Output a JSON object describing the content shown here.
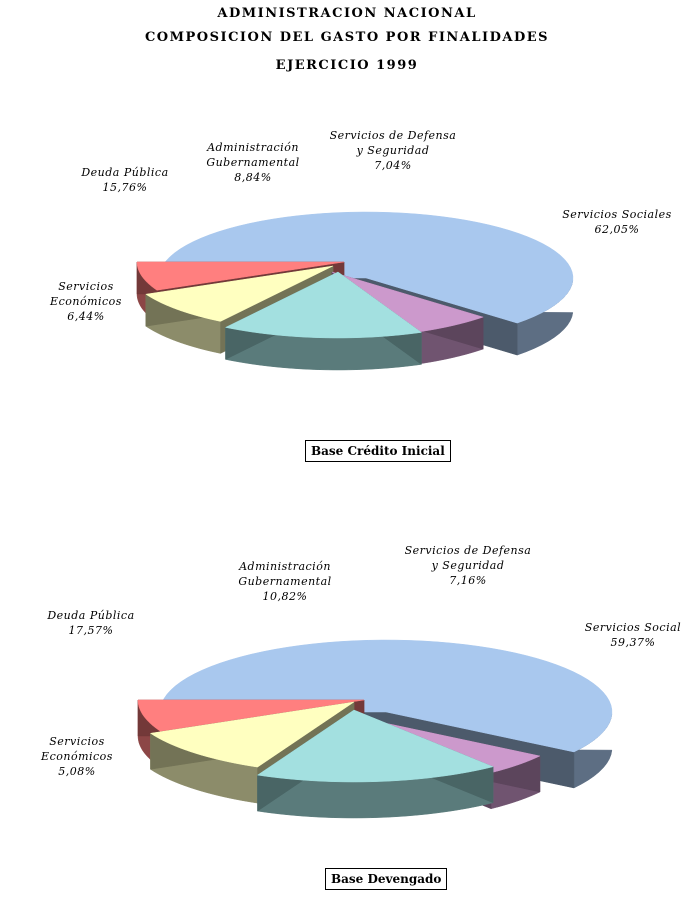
{
  "header": {
    "line1": "ADMINISTRACION NACIONAL",
    "line2": "COMPOSICION DEL GASTO POR FINALIDADES",
    "line3": "EJERCICIO 1999"
  },
  "colors": {
    "sociales": "#a9c8ee",
    "defensa": "#ff7f7f",
    "administracion": "#ffffc0",
    "deuda": "#a3e0e0",
    "economicos": "#cc99cc"
  },
  "chart_data": [
    {
      "type": "pie",
      "title": "Base Crédito Inicial",
      "slices": [
        {
          "key": "sociales",
          "label_lines": [
            "Servicios Sociales"
          ],
          "value_label": "62,05%",
          "value": 62.05
        },
        {
          "key": "economicos",
          "label_lines": [
            "Servicios",
            "Económicos"
          ],
          "value_label": "6,44%",
          "value": 6.44
        },
        {
          "key": "deuda",
          "label_lines": [
            "Deuda Pública"
          ],
          "value_label": "15,76%",
          "value": 15.76
        },
        {
          "key": "administracion",
          "label_lines": [
            "Administración",
            "Gubernamental"
          ],
          "value_label": "8,84%",
          "value": 8.84
        },
        {
          "key": "defensa",
          "label_lines": [
            "Servicios de Defensa",
            "y Seguridad"
          ],
          "value_label": "7,04%",
          "value": 7.04
        }
      ]
    },
    {
      "type": "pie",
      "title": "Base Devengado",
      "slices": [
        {
          "key": "sociales",
          "label_lines": [
            "Servicios Social"
          ],
          "value_label": "59,37%",
          "value": 59.37
        },
        {
          "key": "economicos",
          "label_lines": [
            "Servicios",
            "Económicos"
          ],
          "value_label": "5,08%",
          "value": 5.08
        },
        {
          "key": "deuda",
          "label_lines": [
            "Deuda Pública"
          ],
          "value_label": "17,57%",
          "value": 17.57
        },
        {
          "key": "administracion",
          "label_lines": [
            "Administración",
            "Gubernamental"
          ],
          "value_label": "10,82%",
          "value": 10.82
        },
        {
          "key": "defensa",
          "label_lines": [
            "Servicios de Defensa",
            "y Seguridad"
          ],
          "value_label": "7,16%",
          "value": 7.16
        }
      ]
    }
  ]
}
